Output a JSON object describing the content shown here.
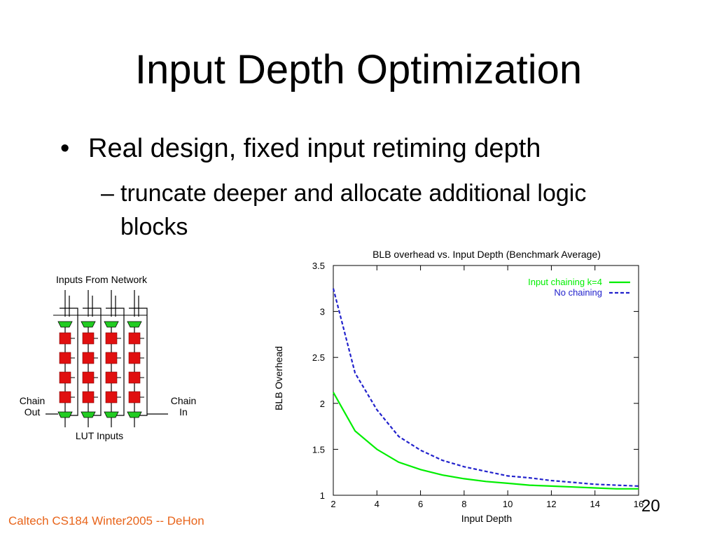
{
  "slide": {
    "title": "Input Depth Optimization",
    "bullet_symbol": "•",
    "bullet": "Real design, fixed input retiming depth",
    "sub_symbol": "–",
    "sub_bullet": "truncate deeper and allocate additional logic blocks",
    "footer": "Caltech CS184 Winter2005 -- DeHon",
    "page_number": "20"
  },
  "diagram": {
    "top_label": "Inputs From Network",
    "left_label_line1": "Chain",
    "left_label_line2": "Out",
    "right_label_line1": "Chain",
    "right_label_line2": "In",
    "bottom_label": "LUT Inputs",
    "colors": {
      "register": "#e01010",
      "mux": "#22cc22",
      "wire": "#000000"
    }
  },
  "chart_data": {
    "type": "line",
    "title": "BLB overhead vs. Input Depth (Benchmark Average)",
    "xlabel": "Input Depth",
    "ylabel": "BLB Overhead",
    "xlim": [
      2,
      16
    ],
    "ylim": [
      1,
      3.5
    ],
    "xticks": [
      "2",
      "4",
      "6",
      "8",
      "10",
      "12",
      "14",
      "16"
    ],
    "yticks": [
      "1",
      "1.5",
      "2",
      "2.5",
      "3",
      "3.5"
    ],
    "legend_position": "top-right",
    "grid": false,
    "x": [
      2,
      3,
      4,
      5,
      6,
      7,
      8,
      9,
      10,
      11,
      12,
      13,
      14,
      15,
      16
    ],
    "series": [
      {
        "name": "Input chaining k=4",
        "color": "#00ee00",
        "style": "solid",
        "values": [
          2.12,
          1.7,
          1.5,
          1.36,
          1.28,
          1.22,
          1.18,
          1.15,
          1.13,
          1.11,
          1.1,
          1.09,
          1.08,
          1.07,
          1.07
        ]
      },
      {
        "name": "No chaining",
        "color": "#2222cc",
        "style": "dashed",
        "values": [
          3.25,
          2.33,
          1.93,
          1.64,
          1.49,
          1.38,
          1.31,
          1.26,
          1.21,
          1.19,
          1.16,
          1.14,
          1.12,
          1.11,
          1.1
        ]
      }
    ]
  }
}
